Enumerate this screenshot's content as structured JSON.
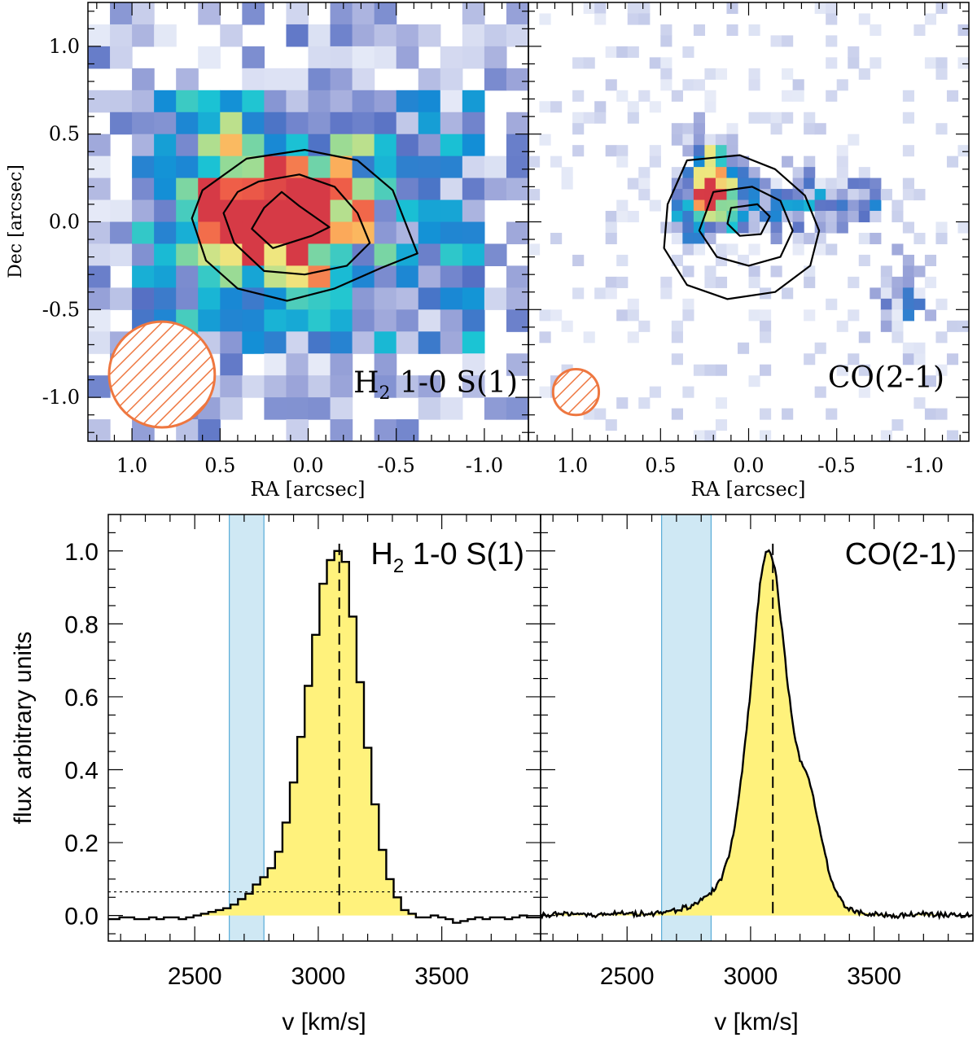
{
  "chart_data": [
    {
      "type": "heatmap",
      "panel": "top-left",
      "title": "H$_2$ 1-0 S(1)",
      "title_main": "H",
      "title_sub": "2",
      "title_rest": " 1-0 S(1)",
      "xlabel": "RA [arcsec]",
      "ylabel": "Dec [arcsec]",
      "xlim": [
        1.25,
        -1.25
      ],
      "ylim": [
        -1.25,
        1.25
      ],
      "xticks": [
        1.0,
        0.5,
        0.0,
        -0.5,
        -1.0
      ],
      "xtick_labels": [
        "1.0",
        "0.5",
        "0.0",
        "-0.5",
        "-1.0"
      ],
      "yticks": [
        1.0,
        0.5,
        0.0,
        -0.5,
        -1.0
      ],
      "ytick_labels": [
        "1.0",
        "0.5",
        "0.0",
        "-0.5",
        "-1.0"
      ],
      "pixel_size_arcsec": 0.125,
      "peak_offset": [
        0.18,
        0.05
      ],
      "beam": {
        "center": [
          0.83,
          -0.87
        ],
        "radius_arcsec": 0.3,
        "color": "#ee7740"
      },
      "contours": [
        {
          "level": 1,
          "points": [
            [
              0.15,
              0.17
            ],
            [
              0.05,
              0.09
            ],
            [
              -0.12,
              -0.03
            ],
            [
              -0.02,
              -0.08
            ],
            [
              0.2,
              -0.15
            ],
            [
              0.32,
              -0.04
            ],
            [
              0.25,
              0.08
            ]
          ]
        },
        {
          "level": 2,
          "points": [
            [
              0.28,
              0.23
            ],
            [
              0.05,
              0.27
            ],
            [
              -0.15,
              0.2
            ],
            [
              -0.28,
              0.05
            ],
            [
              -0.35,
              -0.12
            ],
            [
              -0.22,
              -0.25
            ],
            [
              0.02,
              -0.3
            ],
            [
              0.25,
              -0.28
            ],
            [
              0.42,
              -0.12
            ],
            [
              0.48,
              0.05
            ],
            [
              0.4,
              0.17
            ]
          ]
        },
        {
          "level": 3,
          "points": [
            [
              0.6,
              0.18
            ],
            [
              0.35,
              0.36
            ],
            [
              0.02,
              0.41
            ],
            [
              -0.28,
              0.35
            ],
            [
              -0.48,
              0.18
            ],
            [
              -0.62,
              -0.18
            ],
            [
              -0.42,
              -0.26
            ],
            [
              -0.15,
              -0.38
            ],
            [
              0.12,
              -0.45
            ],
            [
              0.4,
              -0.38
            ],
            [
              0.58,
              -0.22
            ],
            [
              0.66,
              0.02
            ]
          ]
        }
      ]
    },
    {
      "type": "heatmap",
      "panel": "top-right",
      "title": "CO(2-1)",
      "xlabel": "RA [arcsec]",
      "ylabel": "",
      "xlim": [
        1.25,
        -1.25
      ],
      "ylim": [
        -1.25,
        1.25
      ],
      "xticks": [
        1.0,
        0.5,
        0.0,
        -0.5,
        -1.0
      ],
      "xtick_labels": [
        "1.0",
        "0.5",
        "0.0",
        "-0.5",
        "-1.0"
      ],
      "pixel_size_arcsec": 0.0625,
      "peak_offset": [
        0.2,
        0.25
      ],
      "beam": {
        "center": [
          0.98,
          -0.97
        ],
        "radius_arcsec": 0.13,
        "color": "#ee7740"
      },
      "contours": [
        {
          "level": 1,
          "points": [
            [
              0.1,
              0.08
            ],
            [
              -0.05,
              0.1
            ],
            [
              -0.12,
              0.03
            ],
            [
              -0.07,
              -0.07
            ],
            [
              0.05,
              -0.08
            ],
            [
              0.12,
              -0.01
            ]
          ]
        },
        {
          "level": 2,
          "points": [
            [
              0.2,
              0.17
            ],
            [
              -0.02,
              0.2
            ],
            [
              -0.18,
              0.12
            ],
            [
              -0.25,
              -0.05
            ],
            [
              -0.18,
              -0.2
            ],
            [
              0.0,
              -0.25
            ],
            [
              0.18,
              -0.2
            ],
            [
              0.28,
              -0.05
            ]
          ]
        },
        {
          "level": 3,
          "points": [
            [
              0.35,
              0.35
            ],
            [
              0.05,
              0.38
            ],
            [
              -0.15,
              0.3
            ],
            [
              -0.32,
              0.15
            ],
            [
              -0.4,
              -0.05
            ],
            [
              -0.35,
              -0.25
            ],
            [
              -0.15,
              -0.4
            ],
            [
              0.12,
              -0.44
            ],
            [
              0.35,
              -0.36
            ],
            [
              0.48,
              -0.15
            ],
            [
              0.46,
              0.1
            ]
          ]
        }
      ]
    },
    {
      "type": "area",
      "panel": "bottom-left",
      "title": "H$_2$ 1-0 S(1)",
      "title_main": "H",
      "title_sub": "2",
      "title_rest": " 1-0 S(1)",
      "xlabel": "v [km/s]",
      "ylabel": "flux arbitrary units",
      "xlim": [
        2150,
        3900
      ],
      "ylim": [
        -0.07,
        1.1
      ],
      "xticks": [
        2500,
        3000,
        3500
      ],
      "yticks": [
        0.0,
        0.2,
        0.4,
        0.6,
        0.8,
        1.0
      ],
      "ytick_labels": [
        "0.0",
        "0.2",
        "0.4",
        "0.6",
        "0.8",
        "1.0"
      ],
      "step_width_kms": 30,
      "x": [
        2150,
        2180,
        2210,
        2240,
        2270,
        2300,
        2330,
        2360,
        2390,
        2420,
        2450,
        2480,
        2510,
        2540,
        2570,
        2600,
        2630,
        2660,
        2690,
        2720,
        2750,
        2780,
        2810,
        2840,
        2870,
        2900,
        2930,
        2960,
        2990,
        3020,
        3050,
        3080,
        3110,
        3140,
        3170,
        3200,
        3230,
        3260,
        3290,
        3320,
        3350,
        3380,
        3410,
        3440,
        3470,
        3500,
        3530,
        3560,
        3590,
        3620,
        3650,
        3680,
        3710,
        3740,
        3770,
        3800,
        3830,
        3860,
        3890
      ],
      "y": [
        -0.01,
        -0.01,
        -0.005,
        -0.005,
        -0.01,
        -0.01,
        -0.005,
        -0.01,
        -0.005,
        -0.005,
        -0.01,
        -0.005,
        0.0,
        0.005,
        0.01,
        0.015,
        0.02,
        0.03,
        0.045,
        0.06,
        0.085,
        0.105,
        0.13,
        0.175,
        0.255,
        0.365,
        0.49,
        0.63,
        0.77,
        0.91,
        0.975,
        1.0,
        0.97,
        0.82,
        0.64,
        0.46,
        0.305,
        0.18,
        0.1,
        0.05,
        0.015,
        0.005,
        -0.005,
        -0.005,
        0.0,
        -0.005,
        -0.01,
        -0.02,
        -0.015,
        -0.01,
        -0.005,
        -0.01,
        -0.005,
        -0.005,
        -0.01,
        -0.005,
        0.0,
        -0.005,
        -0.005
      ],
      "highlight_band": [
        2640,
        2780
      ],
      "dashed_vline": 3085,
      "dotted_hline": 0.065,
      "fill_color": "#fff27c",
      "band_color": "#cfe8f4"
    },
    {
      "type": "area",
      "panel": "bottom-right",
      "title": "CO(2-1)",
      "xlabel": "v [km/s]",
      "ylabel": "",
      "xlim": [
        2150,
        3900
      ],
      "ylim": [
        -0.07,
        1.1
      ],
      "xticks": [
        2500,
        3000,
        3500
      ],
      "yticks": [
        0.0,
        0.2,
        0.4,
        0.6,
        0.8,
        1.0
      ],
      "x": [
        2150,
        2250,
        2350,
        2450,
        2550,
        2600,
        2650,
        2700,
        2750,
        2800,
        2850,
        2880,
        2910,
        2940,
        2970,
        3000,
        3020,
        3040,
        3060,
        3080,
        3100,
        3120,
        3140,
        3160,
        3180,
        3200,
        3220,
        3250,
        3280,
        3310,
        3340,
        3380,
        3420,
        3500,
        3600,
        3700,
        3800,
        3900
      ],
      "y": [
        0.0,
        0.005,
        0.0,
        0.005,
        0.005,
        0.005,
        0.01,
        0.015,
        0.025,
        0.04,
        0.07,
        0.1,
        0.16,
        0.26,
        0.42,
        0.62,
        0.78,
        0.92,
        0.99,
        1.0,
        0.95,
        0.83,
        0.7,
        0.58,
        0.48,
        0.43,
        0.4,
        0.34,
        0.24,
        0.14,
        0.07,
        0.03,
        0.01,
        0.005,
        0.0,
        0.005,
        0.0,
        0.0
      ],
      "highlight_band": [
        2640,
        2840
      ],
      "dashed_vline": 3090,
      "fill_color": "#fff27c",
      "band_color": "#cfe8f4"
    }
  ]
}
